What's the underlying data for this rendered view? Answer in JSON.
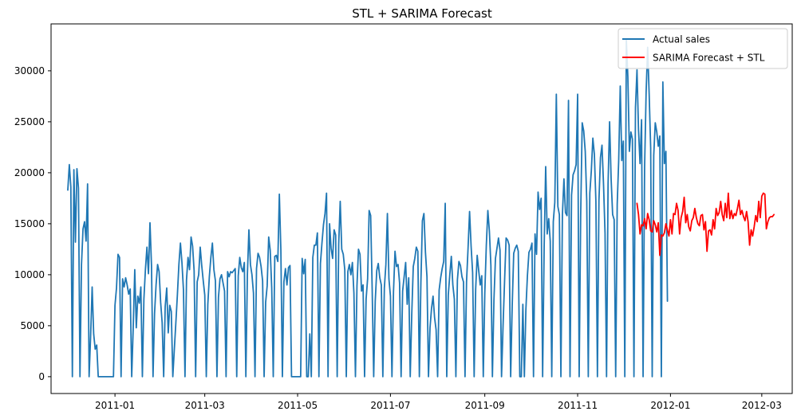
{
  "chart_data": {
    "type": "line",
    "title": "STL + SARIMA Forecast",
    "xlabel": "",
    "ylabel": "",
    "grid": false,
    "legend_position": "top-right",
    "x_axis": {
      "type": "date",
      "range": [
        "2010-11-20",
        "2012-03-21"
      ],
      "ticks": [
        "2011-01-01",
        "2011-03-01",
        "2011-05-01",
        "2011-07-01",
        "2011-09-01",
        "2011-11-01",
        "2012-01-01",
        "2012-03-01"
      ],
      "tick_labels": [
        "2011-01",
        "2011-03",
        "2011-05",
        "2011-07",
        "2011-09",
        "2011-11",
        "2012-01",
        "2012-03"
      ]
    },
    "y_axis": {
      "range": [
        -1650,
        34600
      ],
      "ticks": [
        0,
        5000,
        10000,
        15000,
        20000,
        25000,
        30000
      ],
      "tick_labels": [
        "0",
        "5000",
        "10000",
        "15000",
        "20000",
        "25000",
        "30000"
      ]
    },
    "series": [
      {
        "name": "Actual sales",
        "color": "#1f77b4",
        "start_date": "2010-12-01",
        "end_date": "2011-12-09",
        "values": [
          18300,
          20800,
          18600,
          0,
          20300,
          13200,
          20400,
          18500,
          0,
          11000,
          14500,
          15200,
          13300,
          18900,
          0,
          4000,
          8800,
          4200,
          2700,
          3100,
          0,
          0,
          0,
          0,
          0,
          0,
          0,
          0,
          0,
          0,
          0,
          7000,
          8700,
          12000,
          11700,
          0,
          9600,
          8800,
          9700,
          9000,
          8100,
          8600,
          0,
          4900,
          10500,
          4800,
          7900,
          7200,
          8800,
          0,
          7600,
          10500,
          12700,
          10100,
          15100,
          10900,
          0,
          6200,
          9000,
          11000,
          10300,
          7300,
          5300,
          0,
          6900,
          8700,
          4300,
          7000,
          6400,
          0,
          2700,
          5300,
          8000,
          11000,
          13100,
          11200,
          8500,
          0,
          9500,
          11700,
          10500,
          13700,
          12800,
          10400,
          0,
          9300,
          10000,
          12700,
          10900,
          9400,
          8000,
          0,
          7100,
          9800,
          11700,
          13100,
          10500,
          9400,
          0,
          7800,
          9600,
          10000,
          9200,
          8400,
          0,
          10300,
          9800,
          10300,
          10200,
          10400,
          10600,
          0,
          9900,
          11700,
          10700,
          10300,
          11200,
          0,
          10000,
          14400,
          11000,
          10000,
          8200,
          0,
          10600,
          12100,
          11700,
          10800,
          9400,
          0,
          7300,
          8900,
          13700,
          12400,
          8700,
          0,
          11800,
          11900,
          11300,
          17900,
          12400,
          0,
          9300,
          10600,
          9000,
          10700,
          10900,
          0,
          0,
          0,
          0,
          0,
          0,
          0,
          11600,
          10100,
          11500,
          0,
          0,
          4200,
          0,
          11700,
          12900,
          12900,
          14100,
          0,
          11100,
          13100,
          14900,
          16000,
          18000,
          0,
          15000,
          12600,
          11600,
          14400,
          13900,
          0,
          13000,
          17200,
          12500,
          12000,
          10500,
          0,
          10300,
          11000,
          10000,
          11200,
          8200,
          0,
          8900,
          12500,
          12000,
          8400,
          9000,
          0,
          7600,
          9600,
          16300,
          15800,
          8600,
          0,
          7400,
          10400,
          11100,
          9700,
          9000,
          0,
          8700,
          11000,
          16000,
          9600,
          7900,
          0,
          8300,
          12300,
          10800,
          11000,
          9200,
          0,
          8400,
          9800,
          11200,
          7100,
          9700,
          0,
          6100,
          10800,
          11600,
          12700,
          12300,
          0,
          9200,
          15300,
          16000,
          12200,
          9800,
          0,
          4800,
          6700,
          7900,
          5800,
          4600,
          0,
          8500,
          9700,
          10600,
          11300,
          17000,
          0,
          8000,
          10000,
          11800,
          9000,
          7600,
          0,
          9500,
          11300,
          10900,
          9800,
          9300,
          0,
          9300,
          12600,
          16200,
          12800,
          10200,
          0,
          8600,
          11900,
          10400,
          9000,
          9900,
          0,
          8200,
          12900,
          16300,
          14300,
          10900,
          0,
          7500,
          11600,
          12600,
          13600,
          12400,
          0,
          5000,
          9400,
          13600,
          13400,
          12900,
          0,
          6900,
          12100,
          12600,
          12900,
          12300,
          0,
          0,
          7100,
          0,
          6600,
          9900,
          12200,
          12500,
          13100,
          0,
          14000,
          12000,
          18100,
          16400,
          17500,
          0,
          12700,
          20600,
          14000,
          15500,
          13300,
          0,
          15200,
          17100,
          27700,
          16700,
          15900,
          0,
          15900,
          19400,
          16100,
          15800,
          27100,
          0,
          17800,
          19800,
          20200,
          20800,
          27700,
          0,
          15800,
          24900,
          24100,
          22100,
          17200,
          0,
          18000,
          20200,
          23400,
          21800,
          17200,
          0,
          17300,
          21500,
          22700,
          18900,
          14100,
          0,
          18900,
          25000,
          19400,
          15900,
          15400,
          0,
          16900,
          21300,
          28500,
          21200,
          23100,
          0,
          33000,
          29400,
          22100,
          24000,
          23300,
          0,
          26400,
          30100,
          24200,
          20900,
          25200,
          0,
          20500,
          27900,
          32300,
          27700,
          22400,
          0,
          21700,
          24900,
          24000,
          22600,
          23600,
          0,
          28900,
          20900,
          22100,
          7400
        ]
      },
      {
        "name": "SARIMA Forecast + STL",
        "color": "#ff0000",
        "start_date": "2011-12-10",
        "end_date": "2012-03-09",
        "values": [
          17000,
          15900,
          14000,
          14900,
          14800,
          15500,
          14500,
          16000,
          15400,
          14300,
          14200,
          15300,
          14900,
          14200,
          15100,
          11900,
          13900,
          13800,
          14100,
          15000,
          14400,
          13800,
          15400,
          14000,
          16000,
          15900,
          17000,
          16300,
          14000,
          15600,
          16200,
          17600,
          15100,
          15900,
          14700,
          14300,
          15300,
          15600,
          16500,
          15600,
          15000,
          14800,
          15800,
          15900,
          14400,
          15200,
          12300,
          14300,
          14400,
          13900,
          15400,
          14500,
          16500,
          15800,
          16100,
          17200,
          15900,
          15300,
          17000,
          15600,
          18000,
          15500,
          16300,
          15500,
          16000,
          15800,
          16500,
          17300,
          15900,
          16300,
          15700,
          15300,
          16200,
          15200,
          12900,
          14400,
          13800,
          14700,
          15800,
          15200,
          17200,
          15600,
          17700,
          18000,
          17900,
          14500,
          15200,
          15600,
          15700,
          15700,
          15900
        ]
      }
    ]
  }
}
